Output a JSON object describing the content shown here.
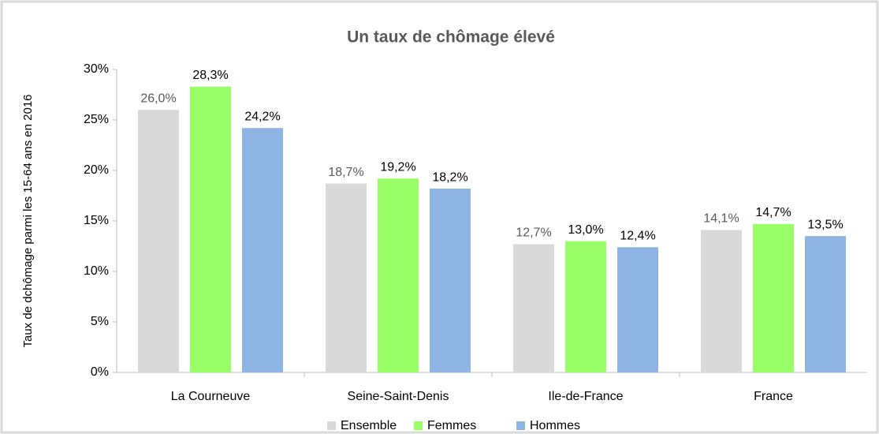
{
  "chart_data": {
    "type": "bar",
    "title": "Un taux de chômage élevé",
    "y_label": "Taux de dchômage parmi les 15-64 ans en 2016",
    "categories": [
      "La Courneuve",
      "Seine-Saint-Denis",
      "Ile-de-France",
      "France"
    ],
    "series": [
      {
        "name": "Ensemble",
        "color": "#d9d9d9",
        "values": [
          26.0,
          18.7,
          12.7,
          14.1
        ],
        "value_labels": [
          "26,0%",
          "18,7%",
          "12,7%",
          "14,1%"
        ]
      },
      {
        "name": "Femmes",
        "color": "#99ff66",
        "values": [
          28.3,
          19.2,
          13.0,
          14.7
        ],
        "value_labels": [
          "28,3%",
          "19,2%",
          "13,0%",
          "14,7%"
        ]
      },
      {
        "name": "Hommes",
        "color": "#8eb4e3",
        "values": [
          24.2,
          18.2,
          12.4,
          13.5
        ],
        "value_labels": [
          "24,2%",
          "18,2%",
          "12,4%",
          "13,5%"
        ]
      }
    ],
    "ylim": [
      0,
      30
    ],
    "yticks": [
      {
        "value": 0,
        "label": "0%"
      },
      {
        "value": 5,
        "label": "5%"
      },
      {
        "value": 10,
        "label": "10%"
      },
      {
        "value": 15,
        "label": "15%"
      },
      {
        "value": 20,
        "label": "20%"
      },
      {
        "value": 25,
        "label": "25%"
      },
      {
        "value": 30,
        "label": "30%"
      }
    ],
    "legend": "bottom"
  }
}
